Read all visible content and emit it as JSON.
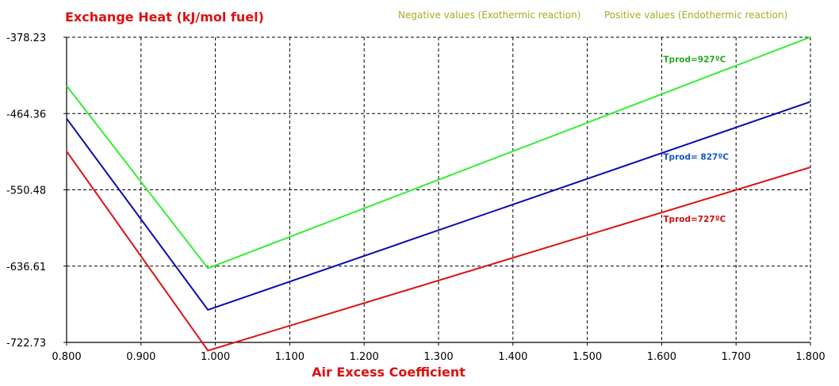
{
  "chart_data": {
    "type": "line",
    "title": "Exchange Heat (kJ/mol fuel)",
    "xlabel": "Air Excess Coefficient",
    "ylabel": "",
    "legend_notes": [
      "Negative values (Exothermic reaction)",
      "Positive values (Endothermic reaction)"
    ],
    "xlim": [
      0.8,
      1.8
    ],
    "ylim": [
      -722.73,
      -378.23
    ],
    "x_ticks": [
      "0.800",
      "0.900",
      "1.000",
      "1.100",
      "1.200",
      "1.300",
      "1.400",
      "1.500",
      "1.600",
      "1.700",
      "1.800"
    ],
    "y_ticks": [
      -378.23,
      -464.36,
      -550.48,
      -636.61,
      -722.73
    ],
    "y_tick_labels": [
      "-378.23",
      "-464.36",
      "-550.48",
      "-636.61",
      "-722.73"
    ],
    "grid": true,
    "series": [
      {
        "name": "Tprod=927ºC",
        "color": "#33ee33",
        "x": [
          0.8,
          0.99,
          1.8
        ],
        "y": [
          -433,
          -639,
          -378
        ]
      },
      {
        "name": "Tprod= 827ºC",
        "color": "#0a0ab4",
        "x": [
          0.8,
          0.99,
          1.8
        ],
        "y": [
          -470,
          -686,
          -451
        ]
      },
      {
        "name": "Tprod=727ºC",
        "color": "#dd1111",
        "x": [
          0.8,
          0.99,
          1.8
        ],
        "y": [
          -507,
          -732,
          -525
        ]
      }
    ],
    "annotations": [
      {
        "text": "Tprod=927ºC",
        "x": 1.6,
        "y": -403,
        "color": "#22aa22"
      },
      {
        "text": "Tprod= 827ºC",
        "x": 1.6,
        "y": -513,
        "color": "#1155cc"
      },
      {
        "text": "Tprod=727ºC",
        "x": 1.6,
        "y": -583,
        "color": "#cc1111"
      }
    ],
    "colors": {
      "title": "#dd1111",
      "xlabel": "#dd1111",
      "notes": "#aaaa22",
      "axis": "#000000",
      "grid": "#000000"
    }
  }
}
